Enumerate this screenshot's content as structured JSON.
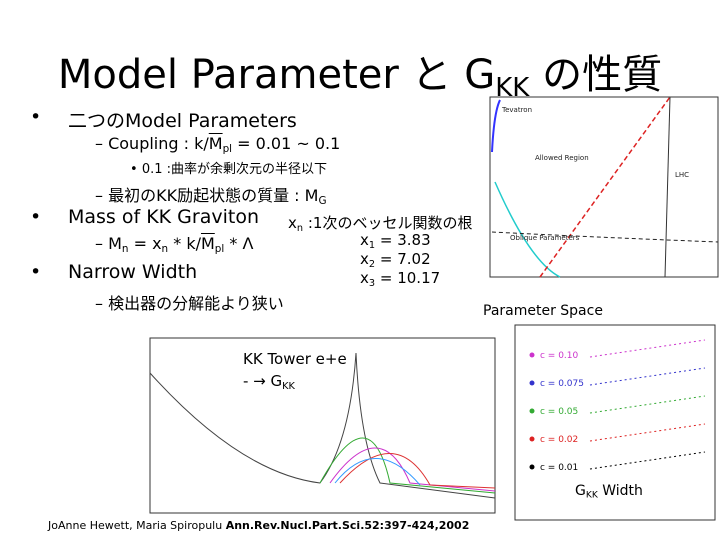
{
  "title": {
    "main": "Model Parameter と G",
    "sub": "KK",
    "tail": " の性質"
  },
  "bullets": {
    "b1": "二つのModel Parameters",
    "coupling": {
      "pre": "Coupling : k/",
      "m": "M",
      "sub": "pl",
      "post": " = 0.01 ~ 0.1"
    },
    "curvature": "0.1 :曲率が余剰次元の半径以下",
    "mass": {
      "pre": "最初のKK励起状態の質量 : M",
      "sub": "G"
    },
    "b2": "Mass of KK Graviton",
    "mn": {
      "m": "M",
      "msub": "n",
      "eq": " = x",
      "xsub": "n",
      "mid": " * k/",
      "m2": "M",
      "m2sub": "pl",
      "post": " * Λ"
    },
    "b3": "Narrow Width",
    "detector": "検出器の分解能より狭い"
  },
  "roots": {
    "head": {
      "x": "x",
      "sub": "n",
      "text": " :1次のベッセル関数の根"
    },
    "items": [
      {
        "x": "x",
        "sub": "1",
        "text": " = 3.83"
      },
      {
        "x": "x",
        "sub": "2",
        "text": " = 7.02"
      },
      {
        "x": "x",
        "sub": "3",
        "text": " = 10.17"
      }
    ]
  },
  "param_plot": {
    "caption": "Parameter Space",
    "labels": [
      "Tevatron",
      "Allowed Region",
      "LHC",
      "Oblique Parameters"
    ]
  },
  "tower_plot": {
    "line1": "KK Tower e+e",
    "line2": "- → G",
    "sub": "KK"
  },
  "width_plot": {
    "caption": "G",
    "sub": "KK",
    "tail": " Width",
    "legend": [
      "c = 0.10",
      "c = 0.075",
      "c = 0.05",
      "c = 0.02",
      "c = 0.01"
    ]
  },
  "citation": {
    "authors": "JoAnne Hewett, Maria Spiropulu ",
    "ref": "Ann.Rev.Nucl.Part.Sci.52:397-424,2002"
  }
}
